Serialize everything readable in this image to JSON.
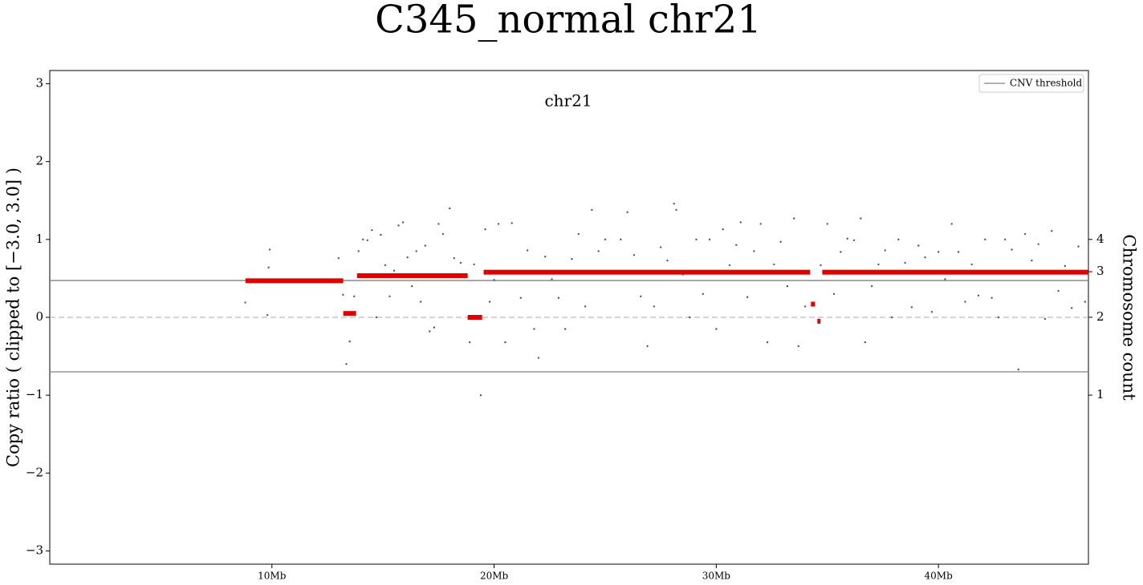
{
  "chart_data": {
    "type": "cnv-scatter",
    "title": "C345_normal chr21",
    "subtitle": "chr21",
    "y_label": "Copy ratio ( clipped to [−3.0, 3.0] )",
    "y2_label": "Chromosome count",
    "xlim": [
      0,
      46.75
    ],
    "xticks": [
      {
        "value": 10,
        "label": "10Mb"
      },
      {
        "value": 20,
        "label": "20Mb"
      },
      {
        "value": 30,
        "label": "30Mb"
      },
      {
        "value": 40,
        "label": "40Mb"
      }
    ],
    "ylim": [
      -3.17,
      3.17
    ],
    "yticks": [
      {
        "value": -3,
        "label": "−3"
      },
      {
        "value": -2,
        "label": "−2"
      },
      {
        "value": -1,
        "label": "−1"
      },
      0,
      1,
      2,
      3
    ],
    "y2scale": "log",
    "y2lim": [
      0.222,
      18.0
    ],
    "y2ticks": [
      1,
      2,
      3,
      4
    ],
    "baseline": 0,
    "thresholds": {
      "name": "CNV threshold",
      "color": "#808080",
      "values": [
        0.473,
        -0.7
      ]
    },
    "legend": "upper right",
    "points": {
      "color": "#555555",
      "x": [
        8.8,
        9.9,
        9.85,
        9.8,
        13.0,
        13.2,
        13.35,
        13.5,
        13.7,
        13.9,
        14.1,
        14.3,
        14.5,
        14.7,
        14.9,
        15.1,
        15.3,
        15.5,
        15.7,
        15.9,
        16.1,
        16.3,
        16.5,
        16.7,
        16.9,
        17.1,
        17.3,
        17.5,
        17.7,
        18.0,
        18.2,
        18.5,
        18.9,
        19.1,
        19.4,
        19.6,
        19.8,
        20.0,
        20.2,
        20.5,
        20.8,
        21.2,
        21.5,
        21.8,
        22.0,
        22.3,
        22.6,
        22.9,
        23.2,
        23.5,
        23.8,
        24.1,
        24.4,
        24.7,
        25.0,
        25.4,
        25.7,
        26.0,
        26.3,
        26.6,
        26.9,
        27.2,
        27.5,
        27.8,
        28.1,
        28.2,
        28.5,
        28.8,
        29.1,
        29.4,
        29.7,
        30.0,
        30.3,
        30.6,
        30.9,
        31.1,
        31.4,
        31.7,
        32.0,
        32.3,
        32.6,
        32.9,
        33.2,
        33.5,
        33.7,
        34.0,
        34.3,
        34.7,
        35.0,
        35.3,
        35.6,
        35.9,
        36.2,
        36.5,
        36.7,
        37.0,
        37.3,
        37.6,
        37.9,
        38.2,
        38.5,
        38.8,
        39.1,
        39.4,
        39.7,
        40.0,
        40.3,
        40.6,
        40.9,
        41.2,
        41.5,
        41.8,
        42.1,
        42.4,
        42.7,
        43.0,
        43.3,
        43.6,
        43.9,
        44.2,
        44.5,
        44.8,
        45.1,
        45.4,
        45.7,
        46.0,
        46.3,
        46.6
      ],
      "values": [
        0.19,
        0.87,
        0.64,
        0.03,
        0.76,
        0.29,
        -0.6,
        -0.31,
        0.27,
        0.85,
        1.0,
        0.99,
        1.12,
        0.0,
        1.06,
        0.67,
        0.27,
        0.6,
        1.18,
        1.22,
        0.77,
        0.4,
        0.85,
        0.2,
        0.92,
        -0.18,
        -0.13,
        1.2,
        1.07,
        1.4,
        0.76,
        0.7,
        -0.32,
        0.68,
        -1.0,
        1.13,
        0.2,
        0.48,
        1.2,
        -0.32,
        1.21,
        0.25,
        0.86,
        -0.15,
        -0.52,
        0.78,
        0.49,
        0.25,
        -0.15,
        0.75,
        1.07,
        0.14,
        1.38,
        0.85,
        1.0,
        0.57,
        1.0,
        1.35,
        0.8,
        0.27,
        -0.37,
        0.14,
        0.9,
        0.73,
        1.46,
        1.38,
        0.55,
        0.0,
        1.0,
        0.3,
        1.0,
        -0.15,
        1.13,
        0.67,
        0.93,
        1.22,
        0.26,
        0.85,
        1.2,
        -0.32,
        0.68,
        0.97,
        0.4,
        1.27,
        -0.37,
        0.14,
        0.15,
        0.67,
        1.2,
        0.3,
        0.84,
        1.01,
        0.99,
        1.27,
        -0.32,
        0.4,
        0.68,
        0.86,
        0.0,
        1.0,
        0.7,
        0.13,
        0.92,
        0.77,
        0.07,
        0.84,
        0.49,
        1.2,
        0.84,
        0.2,
        0.68,
        0.28,
        1.0,
        0.25,
        0.0,
        1.0,
        0.87,
        -0.67,
        1.07,
        0.73,
        0.94,
        -0.02,
        1.11,
        0.34,
        0.66,
        0.12,
        0.91,
        0.2
      ]
    },
    "segments": {
      "color": "#e00000",
      "start": [
        8.81,
        13.21,
        13.83,
        18.81,
        19.53,
        34.26,
        34.55,
        34.77
      ],
      "end": [
        13.21,
        13.79,
        18.81,
        19.46,
        34.22,
        34.44,
        34.69,
        46.75
      ],
      "values": [
        0.47,
        0.05,
        0.535,
        0.0,
        0.58,
        0.17,
        -0.05,
        0.58
      ]
    }
  }
}
